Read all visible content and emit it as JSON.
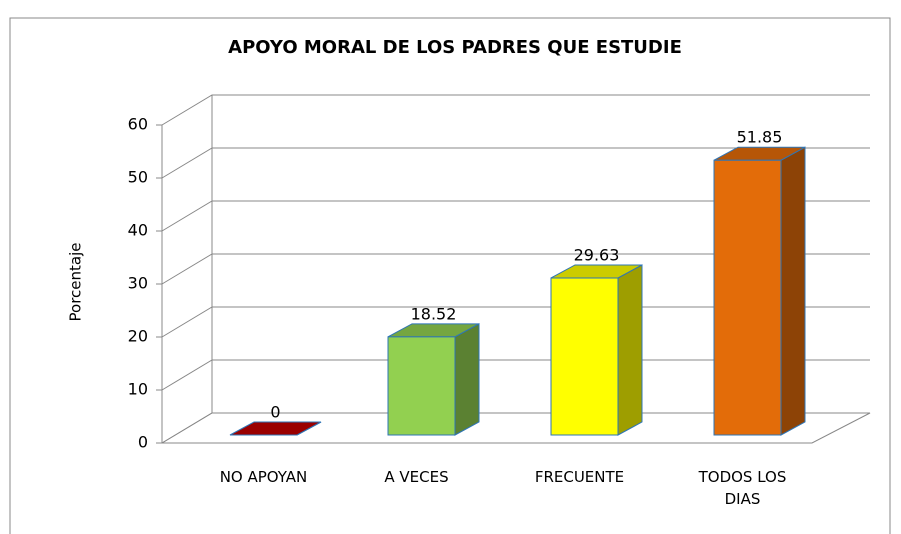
{
  "chart_data": {
    "type": "bar3d",
    "title": "APOYO MORAL DE LOS PADRES QUE ESTUDIE",
    "y_label": "Porcentaje",
    "categories": [
      "NO APOYAN",
      "A VECES",
      "FRECUENTE",
      "TODOS LOS DIAS"
    ],
    "values": [
      0,
      18.52,
      29.63,
      51.85
    ],
    "colors": [
      "#c00000",
      "#92d050",
      "#ffff00",
      "#e36c09"
    ],
    "ylim": [
      0,
      60
    ],
    "yticks": [
      0,
      10,
      20,
      30,
      40,
      50,
      60
    ],
    "grid": true
  }
}
